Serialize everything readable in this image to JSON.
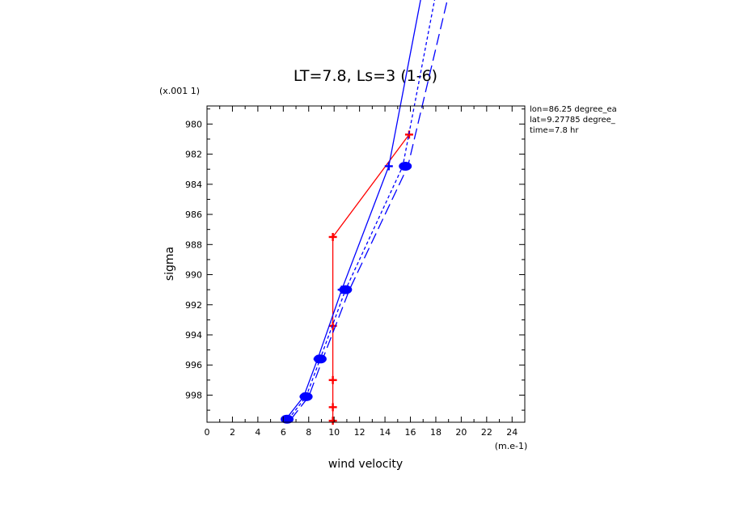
{
  "chart_data": {
    "type": "line",
    "title": "LT=7.8, Ls=3 (1-6)",
    "xlabel": "wind velocity",
    "ylabel": "sigma",
    "x_unit_label": "(m.e-1)",
    "y_unit_label": "(x.001 1)",
    "xlim": [
      0,
      25
    ],
    "ylim": [
      999.8,
      978.8
    ],
    "x_ticks": [
      0,
      2,
      4,
      6,
      8,
      10,
      12,
      14,
      16,
      18,
      20,
      22,
      24
    ],
    "y_ticks": [
      980,
      982,
      984,
      986,
      988,
      990,
      992,
      994,
      996,
      998
    ],
    "grid": false,
    "annotations": [
      "lon=86.25 degree_ea",
      "lat=9.27785 degree_",
      "time=7.8 hr"
    ],
    "series": [
      {
        "color": "#ff0000",
        "dash": "solid",
        "marker": "plus",
        "points": [
          [
            9.9,
            999.7
          ],
          [
            9.9,
            998.8
          ],
          [
            9.9,
            997.0
          ],
          [
            9.9,
            993.4
          ],
          [
            9.9,
            987.5
          ],
          [
            15.9,
            980.7
          ]
        ]
      },
      {
        "color": "#0000ff",
        "dash": "solid",
        "marker": "plus",
        "points": [
          [
            6.2,
            999.6
          ],
          [
            7.6,
            998.1
          ],
          [
            8.7,
            995.6
          ],
          [
            10.6,
            991.0
          ],
          [
            14.3,
            982.8
          ],
          [
            17.2,
            970.0
          ]
        ]
      },
      {
        "color": "#0000ff",
        "dash": "short",
        "marker": "none",
        "points": [
          [
            6.4,
            999.6
          ],
          [
            7.8,
            998.1
          ],
          [
            8.9,
            995.6
          ],
          [
            10.9,
            991.0
          ],
          [
            15.4,
            982.8
          ],
          [
            18.3,
            970.0
          ]
        ]
      },
      {
        "color": "#0000ff",
        "dash": "long",
        "marker": "none",
        "points": [
          [
            6.6,
            999.6
          ],
          [
            8.0,
            998.1
          ],
          [
            9.1,
            995.6
          ],
          [
            11.2,
            991.0
          ],
          [
            15.8,
            982.8
          ],
          [
            19.4,
            970.0
          ]
        ]
      }
    ],
    "blob_markers": {
      "color": "#0000ff",
      "points": [
        [
          6.3,
          999.6
        ],
        [
          7.8,
          998.1
        ],
        [
          8.9,
          995.6
        ],
        [
          10.9,
          991.0
        ],
        [
          15.6,
          982.8
        ]
      ]
    }
  }
}
